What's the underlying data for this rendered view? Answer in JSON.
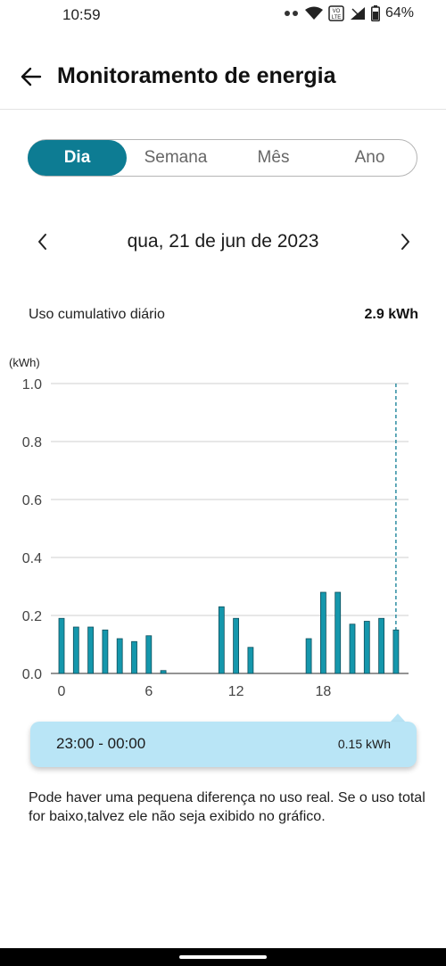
{
  "status_bar": {
    "time": "10:59",
    "battery": "64%",
    "network_badge": "VO LTE"
  },
  "app_bar": {
    "title": "Monitoramento de energia",
    "back_icon": "arrow-left-icon"
  },
  "tabs": [
    {
      "label": "Dia",
      "active": true
    },
    {
      "label": "Semana",
      "active": false
    },
    {
      "label": "Mês",
      "active": false
    },
    {
      "label": "Ano",
      "active": false
    }
  ],
  "date_nav": {
    "date": "qua, 21 de jun de 2023",
    "prev_icon": "chevron-left-icon",
    "next_icon": "chevron-right-icon"
  },
  "usage": {
    "label": "Uso cumulativo diário",
    "value": "2.9 kWh"
  },
  "chart_data": {
    "type": "bar",
    "unit_label": "(kWh)",
    "ylim": [
      0,
      1.0
    ],
    "yticks": [
      "1.0",
      "0.8",
      "0.6",
      "0.4",
      "0.2",
      "0.0"
    ],
    "xtick_labels": [
      "0",
      "6",
      "12",
      "18"
    ],
    "categories": [
      0,
      1,
      2,
      3,
      4,
      5,
      6,
      7,
      8,
      9,
      10,
      11,
      12,
      13,
      14,
      15,
      16,
      17,
      18,
      19,
      20,
      21,
      22,
      23
    ],
    "values": [
      0.19,
      0.16,
      0.16,
      0.15,
      0.12,
      0.11,
      0.13,
      0.01,
      0,
      0,
      0,
      0.23,
      0.19,
      0.09,
      0,
      0,
      0,
      0.12,
      0.28,
      0.28,
      0.17,
      0.18,
      0.19,
      0.15
    ],
    "selected_index": 23,
    "bar_color": "#1597ac",
    "grid": true
  },
  "tooltip": {
    "time": "23:00 - 00:00",
    "value": "0.15 kWh"
  },
  "disclaimer": "Pode haver uma pequena diferença no uso real. Se o uso total for baixo,talvez ele não seja exibido no gráfico.",
  "colors": {
    "accent": "#0d7c93",
    "tooltip_bg": "#b9e5f6"
  }
}
